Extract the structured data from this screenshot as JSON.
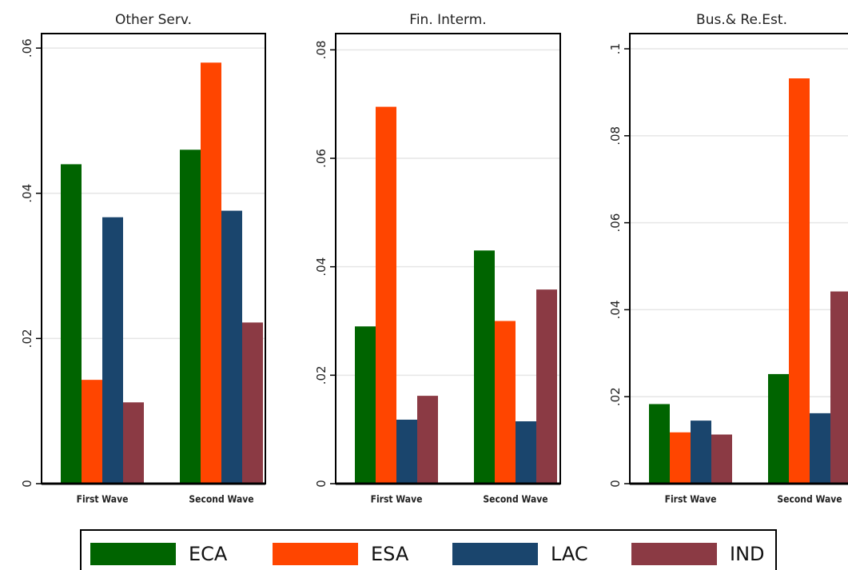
{
  "chart_data": [
    {
      "type": "bar",
      "title": "Other Serv.",
      "categories": [
        "First Wave",
        "Second Wave"
      ],
      "ylim": [
        0,
        0.062
      ],
      "yticks": [
        0,
        0.02,
        0.04,
        0.06
      ],
      "ytick_labels": [
        "0",
        ".02",
        ".04",
        ".06"
      ],
      "grid": true,
      "series": [
        {
          "name": "ECA",
          "values": [
            0.044,
            0.046
          ]
        },
        {
          "name": "ESA",
          "values": [
            0.0143,
            0.058
          ]
        },
        {
          "name": "LAC",
          "values": [
            0.0367,
            0.0376
          ]
        },
        {
          "name": "IND",
          "values": [
            0.0112,
            0.0222
          ]
        }
      ]
    },
    {
      "type": "bar",
      "title": "Fin. Interm.",
      "categories": [
        "First Wave",
        "Second Wave"
      ],
      "ylim": [
        0,
        0.083
      ],
      "yticks": [
        0,
        0.02,
        0.04,
        0.06,
        0.08
      ],
      "ytick_labels": [
        "0",
        ".02",
        ".04",
        ".06",
        ".08"
      ],
      "grid": true,
      "series": [
        {
          "name": "ECA",
          "values": [
            0.029,
            0.043
          ]
        },
        {
          "name": "ESA",
          "values": [
            0.0695,
            0.03
          ]
        },
        {
          "name": "LAC",
          "values": [
            0.0118,
            0.0115
          ]
        },
        {
          "name": "IND",
          "values": [
            0.0162,
            0.0358
          ]
        }
      ]
    },
    {
      "type": "bar",
      "title": "Bus.& Re.Est.",
      "categories": [
        "First Wave",
        "Second Wave"
      ],
      "ylim": [
        0,
        0.1035
      ],
      "yticks": [
        0,
        0.02,
        0.04,
        0.06,
        0.08,
        0.1
      ],
      "ytick_labels": [
        "0",
        ".02",
        ".04",
        ".06",
        ".08",
        ".1"
      ],
      "grid": true,
      "series": [
        {
          "name": "ECA",
          "values": [
            0.0183,
            0.0252
          ]
        },
        {
          "name": "ESA",
          "values": [
            0.0118,
            0.0932
          ]
        },
        {
          "name": "LAC",
          "values": [
            0.0145,
            0.0162
          ]
        },
        {
          "name": "IND",
          "values": [
            0.0113,
            0.0442
          ]
        }
      ]
    }
  ],
  "legend": {
    "placement": "bottom",
    "items": [
      {
        "label": "ECA",
        "color": "#006400"
      },
      {
        "label": "ESA",
        "color": "#ff4500"
      },
      {
        "label": "LAC",
        "color": "#1a456d"
      },
      {
        "label": "IND",
        "color": "#8b3a44"
      }
    ]
  }
}
